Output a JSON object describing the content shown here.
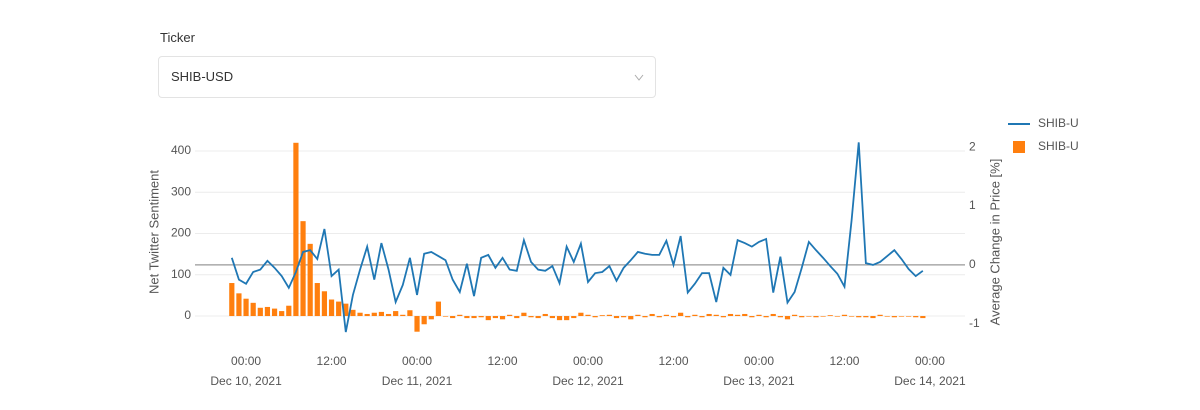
{
  "ticker": {
    "label": "Ticker",
    "value": "SHIB-USD"
  },
  "chart_data": {
    "type": "combo",
    "y_label": "Net Twitter Sentiment",
    "y2_label": "Average Change in Price [%]",
    "x": [
      "2021-12-09T22:00",
      "2021-12-09T23:00",
      "2021-12-10T00:00",
      "2021-12-10T01:00",
      "2021-12-10T02:00",
      "2021-12-10T03:00",
      "2021-12-10T04:00",
      "2021-12-10T05:00",
      "2021-12-10T06:00",
      "2021-12-10T07:00",
      "2021-12-10T08:00",
      "2021-12-10T09:00",
      "2021-12-10T10:00",
      "2021-12-10T11:00",
      "2021-12-10T12:00",
      "2021-12-10T13:00",
      "2021-12-10T14:00",
      "2021-12-10T15:00",
      "2021-12-10T16:00",
      "2021-12-10T17:00",
      "2021-12-10T18:00",
      "2021-12-10T19:00",
      "2021-12-10T20:00",
      "2021-12-10T21:00",
      "2021-12-10T22:00",
      "2021-12-10T23:00",
      "2021-12-11T00:00",
      "2021-12-11T01:00",
      "2021-12-11T02:00",
      "2021-12-11T03:00",
      "2021-12-11T04:00",
      "2021-12-11T05:00",
      "2021-12-11T06:00",
      "2021-12-11T07:00",
      "2021-12-11T08:00",
      "2021-12-11T09:00",
      "2021-12-11T10:00",
      "2021-12-11T11:00",
      "2021-12-11T12:00",
      "2021-12-11T13:00",
      "2021-12-11T14:00",
      "2021-12-11T15:00",
      "2021-12-11T16:00",
      "2021-12-11T17:00",
      "2021-12-11T18:00",
      "2021-12-11T19:00",
      "2021-12-11T20:00",
      "2021-12-11T21:00",
      "2021-12-11T22:00",
      "2021-12-11T23:00",
      "2021-12-12T00:00",
      "2021-12-12T01:00",
      "2021-12-12T02:00",
      "2021-12-12T03:00",
      "2021-12-12T04:00",
      "2021-12-12T05:00",
      "2021-12-12T06:00",
      "2021-12-12T07:00",
      "2021-12-12T08:00",
      "2021-12-12T09:00",
      "2021-12-12T10:00",
      "2021-12-12T11:00",
      "2021-12-12T12:00",
      "2021-12-12T13:00",
      "2021-12-12T14:00",
      "2021-12-12T15:00",
      "2021-12-12T16:00",
      "2021-12-12T17:00",
      "2021-12-12T18:00",
      "2021-12-12T19:00",
      "2021-12-12T20:00",
      "2021-12-12T21:00",
      "2021-12-12T22:00",
      "2021-12-12T23:00",
      "2021-12-13T00:00",
      "2021-12-13T01:00",
      "2021-12-13T02:00",
      "2021-12-13T03:00",
      "2021-12-13T04:00",
      "2021-12-13T05:00",
      "2021-12-13T06:00",
      "2021-12-13T07:00",
      "2021-12-13T08:00",
      "2021-12-13T09:00",
      "2021-12-13T10:00",
      "2021-12-13T11:00",
      "2021-12-13T12:00",
      "2021-12-13T13:00",
      "2021-12-13T14:00",
      "2021-12-13T15:00",
      "2021-12-13T16:00",
      "2021-12-13T17:00",
      "2021-12-13T18:00",
      "2021-12-13T19:00",
      "2021-12-13T20:00",
      "2021-12-13T21:00",
      "2021-12-13T22:00",
      "2021-12-13T23:00"
    ],
    "series": [
      {
        "name": "SHIB-U",
        "type": "line",
        "axis": "y2",
        "color": "#1f77b4",
        "values": [
          0.12,
          -0.25,
          -0.32,
          -0.12,
          -0.08,
          0.07,
          -0.05,
          -0.19,
          -0.39,
          -0.12,
          0.22,
          0.25,
          0.1,
          0.61,
          -0.19,
          -0.08,
          -1.14,
          -0.51,
          -0.08,
          0.31,
          -0.25,
          0.37,
          -0.08,
          -0.63,
          -0.34,
          0.12,
          -0.51,
          0.19,
          0.22,
          0.15,
          0.08,
          -0.25,
          -0.46,
          0.02,
          -0.53,
          0.12,
          0.17,
          -0.05,
          0.12,
          -0.08,
          -0.1,
          0.42,
          0.05,
          -0.08,
          -0.1,
          -0.02,
          -0.31,
          0.31,
          0.05,
          0.36,
          -0.29,
          -0.14,
          -0.12,
          -0.02,
          -0.27,
          -0.05,
          0.08,
          0.22,
          0.19,
          0.17,
          0.17,
          0.41,
          0.0,
          0.49,
          -0.47,
          -0.32,
          -0.14,
          -0.14,
          -0.63,
          -0.05,
          -0.17,
          0.42,
          0.37,
          0.31,
          0.39,
          0.44,
          -0.47,
          0.14,
          -0.64,
          -0.46,
          -0.05,
          0.39,
          0.25,
          0.12,
          -0.02,
          -0.15,
          -0.37,
          0.76,
          2.08,
          0.03,
          0.0,
          0.05,
          0.15,
          0.25,
          0.1,
          -0.07,
          -0.19,
          -0.1
        ]
      },
      {
        "name": "SHIB-U",
        "type": "bar",
        "color": "#ff7f0e",
        "values": [
          80,
          55,
          42,
          32,
          20,
          22,
          18,
          12,
          25,
          420,
          230,
          175,
          80,
          60,
          40,
          35,
          30,
          15,
          8,
          5,
          8,
          10,
          5,
          12,
          3,
          14,
          -38,
          -20,
          -8,
          35,
          0,
          -5,
          3,
          -5,
          -5,
          -3,
          -10,
          -5,
          -8,
          3,
          -5,
          8,
          -3,
          -5,
          5,
          -5,
          -10,
          -10,
          -5,
          8,
          3,
          -3,
          2,
          3,
          -5,
          -3,
          -8,
          3,
          -3,
          5,
          -3,
          3,
          -3,
          8,
          -3,
          3,
          -3,
          5,
          3,
          -3,
          5,
          3,
          5,
          -3,
          3,
          -3,
          5,
          -3,
          -8,
          3,
          -3,
          0,
          -3,
          0,
          2,
          0,
          3,
          0,
          -3,
          -3,
          -5,
          3,
          0,
          -3,
          0,
          0,
          -3,
          -5
        ]
      }
    ],
    "xlim": [
      "2021-12-09T16:50",
      "2021-12-14T04:55"
    ],
    "xticks": [
      {
        "value": "2021-12-10T00:00",
        "label": [
          "00:00",
          "Dec 10, 2021"
        ]
      },
      {
        "value": "2021-12-10T12:00",
        "label": [
          "12:00"
        ]
      },
      {
        "value": "2021-12-11T00:00",
        "label": [
          "00:00",
          "Dec 11, 2021"
        ]
      },
      {
        "value": "2021-12-11T12:00",
        "label": [
          "12:00"
        ]
      },
      {
        "value": "2021-12-12T00:00",
        "label": [
          "00:00",
          "Dec 12, 2021"
        ]
      },
      {
        "value": "2021-12-12T12:00",
        "label": [
          "12:00"
        ]
      },
      {
        "value": "2021-12-13T00:00",
        "label": [
          "00:00",
          "Dec 13, 2021"
        ]
      },
      {
        "value": "2021-12-13T12:00",
        "label": [
          "12:00"
        ]
      },
      {
        "value": "2021-12-14T00:00",
        "label": [
          "00:00",
          "Dec 14, 2021"
        ]
      }
    ],
    "ylim": [
      -46,
      451
    ],
    "yticks": [
      0,
      100,
      200,
      300,
      400
    ],
    "y2lim": [
      -1.19,
      2.29
    ],
    "y2ticks": [
      -1,
      0,
      1,
      2
    ],
    "grid": true
  }
}
